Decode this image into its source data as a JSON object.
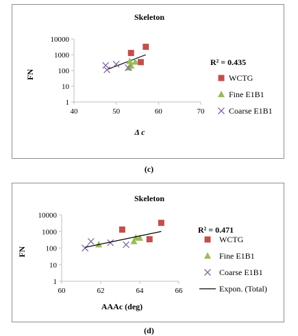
{
  "captions": [
    "(c)",
    "(d)"
  ],
  "chart_data": [
    {
      "type": "scatter",
      "title": "Skeleton",
      "xlabel": "Δ c",
      "ylabel": "FN",
      "xlim": [
        40,
        70
      ],
      "ylim": [
        1,
        10000
      ],
      "yscale": "log",
      "xticks": [
        "40",
        "50",
        "60",
        "70"
      ],
      "yticks": [
        "1",
        "10",
        "100",
        "1000",
        "10000"
      ],
      "annotation": "R² = 0.435",
      "legend_position": "right",
      "grid": false,
      "series": [
        {
          "name": "WCTG",
          "marker": "square",
          "color": "#c0504d",
          "x": [
            53.5,
            57.0,
            55.8
          ],
          "y": [
            1300,
            3200,
            340
          ]
        },
        {
          "name": "Fine E1B1",
          "marker": "triangle",
          "color": "#9bbb59",
          "x": [
            53.2,
            53.5,
            53.0,
            54.5
          ],
          "y": [
            380,
            200,
            150,
            350
          ]
        },
        {
          "name": "Coarse E1B1",
          "marker": "x",
          "color": "#8064a2",
          "x": [
            47.5,
            47.8,
            50.0,
            52.8
          ],
          "y": [
            210,
            110,
            250,
            150
          ]
        }
      ],
      "trendline": {
        "x": [
          48,
          57
        ],
        "y": [
          120,
          1000
        ],
        "color": "#000000"
      }
    },
    {
      "type": "scatter",
      "title": "Skeleton",
      "xlabel": "AAAc  (deg)",
      "ylabel": "FN",
      "xlim": [
        60,
        66
      ],
      "ylim": [
        1,
        10000
      ],
      "yscale": "log",
      "xticks": [
        "60",
        "62",
        "64",
        "66"
      ],
      "yticks": [
        "1",
        "10",
        "100",
        "1000",
        "10000"
      ],
      "annotation": "R² = 0.471",
      "legend_position": "right",
      "grid": false,
      "series": [
        {
          "name": "WCTG",
          "marker": "square",
          "color": "#c0504d",
          "x": [
            63.1,
            65.1,
            64.5
          ],
          "y": [
            1300,
            3300,
            340
          ]
        },
        {
          "name": "Fine E1B1",
          "marker": "triangle",
          "color": "#9bbb59",
          "x": [
            61.9,
            63.7,
            63.8,
            64.0
          ],
          "y": [
            160,
            250,
            420,
            400
          ]
        },
        {
          "name": "Coarse E1B1",
          "marker": "x",
          "color": "#8064a2",
          "x": [
            61.2,
            61.5,
            62.5,
            63.3
          ],
          "y": [
            100,
            250,
            210,
            160
          ]
        },
        {
          "name": "Expon. (Total)",
          "marker": "line",
          "color": "#000000",
          "x": [
            61.2,
            65.1
          ],
          "y": [
            110,
            1000
          ]
        }
      ]
    }
  ]
}
